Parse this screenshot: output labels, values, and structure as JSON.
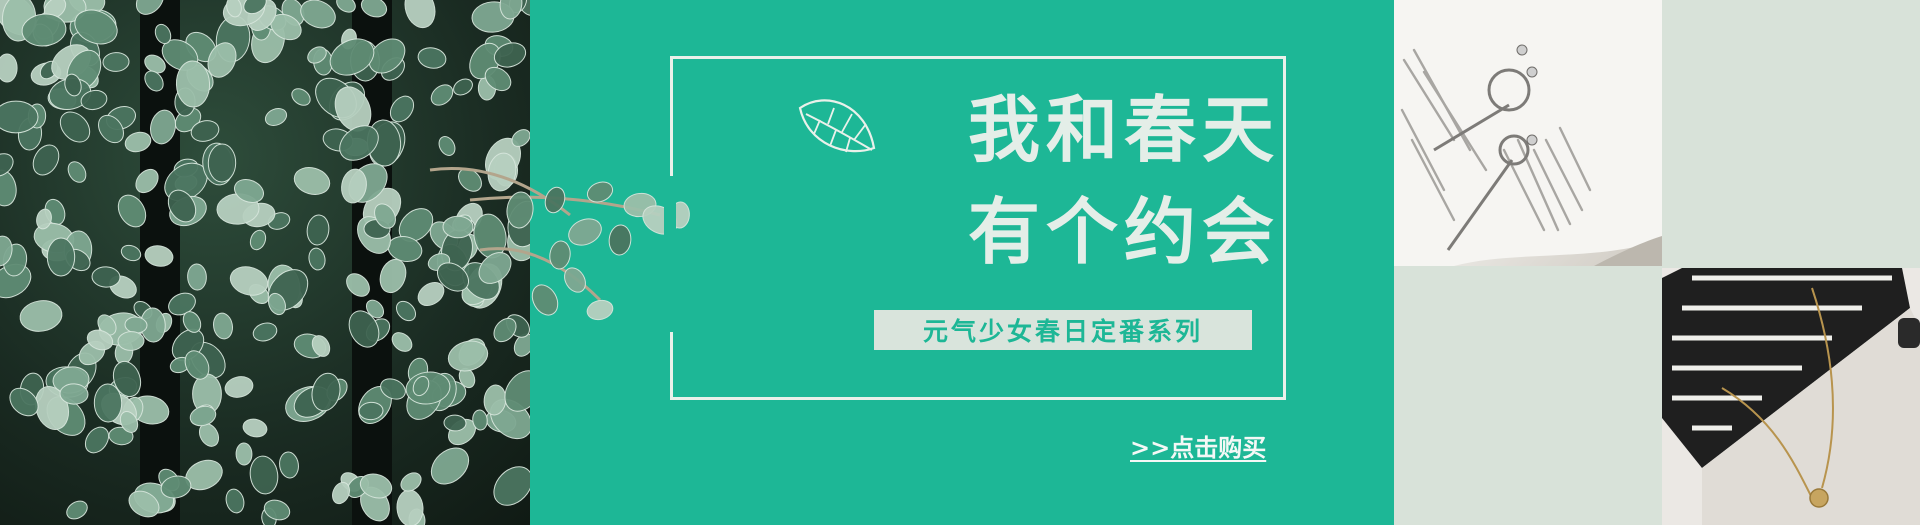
{
  "banner": {
    "title_line1": "我和春天",
    "title_line2": "有个约会",
    "subtitle": "元气少女春日定番系列",
    "buy_link": ">>点击购买"
  },
  "photos": {
    "book_quote": "\"these are living photographs,\" always fun.\""
  },
  "colors": {
    "teal": "#1db796",
    "mint_bg": "#d8e2d9",
    "cream_text": "#e4eee8"
  },
  "icons": {
    "leaf": "leaf-outline-icon"
  }
}
